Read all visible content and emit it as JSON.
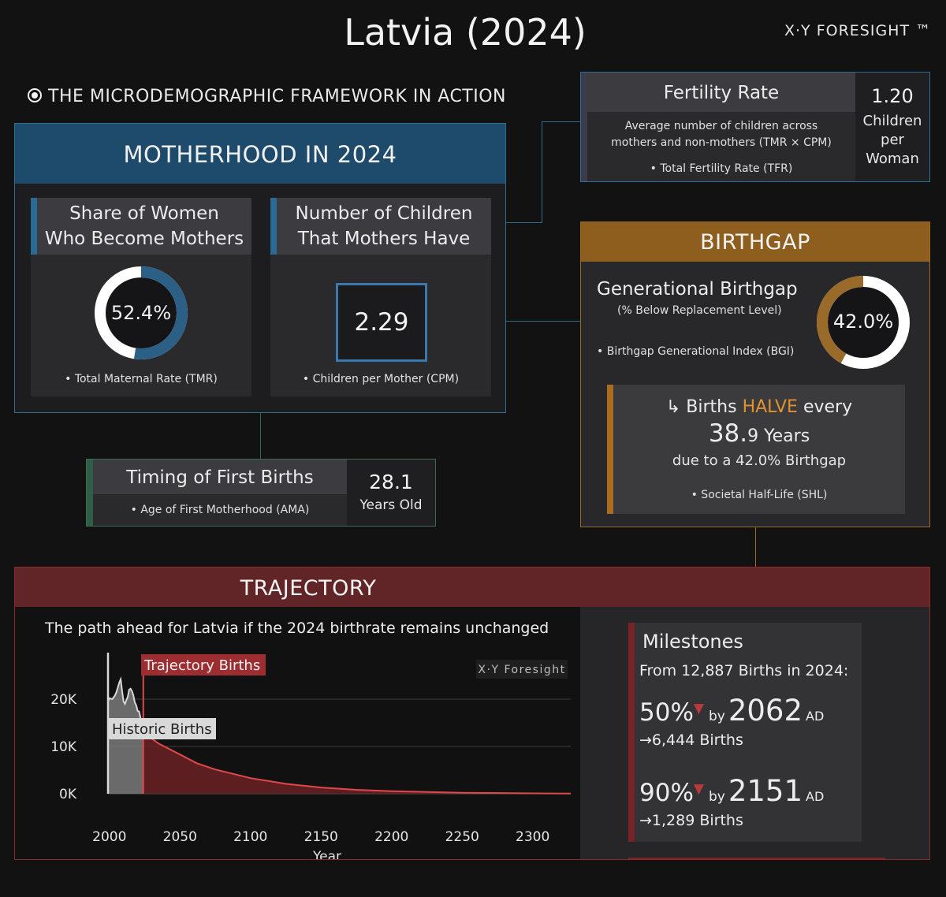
{
  "title": "Latvia (2024)",
  "brand": "X·Y FORESIGHT ™",
  "framework_label": "THE MICRODEMOGRAPHIC FRAMEWORK IN ACTION",
  "motherhood": {
    "header": "MOTHERHOOD IN 2024",
    "share_title_line1": "Share of Women",
    "share_title_line2": "Who Become Mothers",
    "share_value": "52.4%",
    "share_fraction": 0.524,
    "share_footnote": "• Total Maternal Rate (TMR)",
    "children_title_line1": "Number of Children",
    "children_title_line2": "That Mothers Have",
    "children_value": "2.29",
    "children_footnote": "• Children per Mother (CPM)"
  },
  "fertility": {
    "title": "Fertility Rate",
    "desc_line1": "Average number of children across",
    "desc_line2": "mothers and non-mothers (TMR × CPM)",
    "footnote": "• Total Fertility Rate (TFR)",
    "value": "1.20",
    "unit_line1": "Children",
    "unit_line2": "per",
    "unit_line3": "Woman"
  },
  "timing": {
    "title": "Timing of First Births",
    "footnote": "• Age of First Motherhood (AMA)",
    "value": "28.1",
    "unit": "Years Old"
  },
  "birthgap": {
    "header": "BIRTHGAP",
    "title": "Generational Birthgap",
    "subtitle": "(% Below Replacement Level)",
    "footnote": "• Birthgap Generational Index (BGI)",
    "value": "42.0%",
    "fraction": 0.42,
    "halve_prefix": "↳ Births ",
    "halve_word": "HALVE",
    "halve_suffix": " every",
    "years_int": "38.",
    "years_dec": "9",
    "years_unit": " Years",
    "due_to": "due to a 42.0% Birthgap",
    "shl_footnote": "• Societal Half-Life (SHL)"
  },
  "trajectory": {
    "header": "TRAJECTORY",
    "subtitle": "The path ahead for Latvia if the 2024 birthrate remains unchanged",
    "watermark": "X·Y Foresight",
    "label_trajectory": "Trajectory Births",
    "label_historic": "Historic Births"
  },
  "milestones": {
    "title": "Milestones",
    "from": "From 12,887 Births in 2024:",
    "items": [
      {
        "pct": "50%",
        "by": "by",
        "year": "2062",
        "ad": "AD",
        "births": "→6,444 Births"
      },
      {
        "pct": "90%",
        "by": "by",
        "year": "2151",
        "ad": "AD",
        "births": "→1,289 Births"
      }
    ]
  },
  "colors": {
    "tmr_ring": "#2c5f86",
    "birthgap_ring": "#9a6a2a",
    "trajectory_fill": "#6b2124",
    "trajectory_line": "#e0484b",
    "historic_fill": "#7a7a7a"
  },
  "chart_data": {
    "type": "area",
    "xlabel": "Year",
    "ylabel": "",
    "x_ticks": [
      2000,
      2050,
      2100,
      2150,
      2200,
      2250,
      2300
    ],
    "y_ticks": [
      {
        "value": 0,
        "label": "0K"
      },
      {
        "value": 10000,
        "label": "10K"
      },
      {
        "value": 20000,
        "label": "20K"
      }
    ],
    "xlim": [
      1999,
      2327
    ],
    "ylim": [
      0,
      25000
    ],
    "grid": true,
    "series": [
      {
        "name": "Historic Births",
        "x": [
          1999,
          2000,
          2002,
          2004,
          2005,
          2006,
          2007,
          2008,
          2009,
          2010,
          2011,
          2012,
          2013,
          2014,
          2015,
          2016,
          2017,
          2018,
          2019,
          2020,
          2021,
          2022,
          2023,
          2024
        ],
        "y": [
          19500,
          20200,
          20000,
          20800,
          21500,
          22500,
          23500,
          24200,
          21700,
          19500,
          19000,
          19800,
          20500,
          22000,
          22200,
          21700,
          20800,
          19300,
          18700,
          17500,
          17400,
          16000,
          14600,
          12887
        ]
      },
      {
        "name": "Trajectory Births",
        "x": [
          2024,
          2035,
          2050,
          2062,
          2075,
          2100,
          2125,
          2151,
          2175,
          2200,
          2250,
          2300,
          2327
        ],
        "y": [
          12887,
          10600,
          8300,
          6444,
          5130,
          3300,
          2100,
          1289,
          840,
          540,
          220,
          90,
          55
        ]
      }
    ]
  }
}
